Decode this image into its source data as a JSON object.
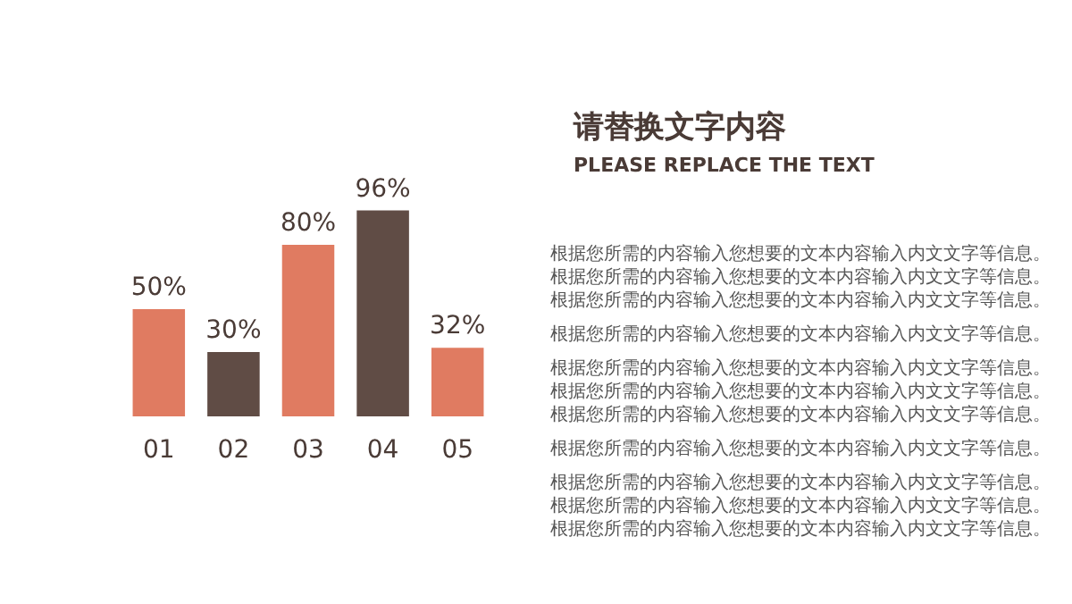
{
  "chart_data": {
    "type": "bar",
    "title": "请替换文字内容",
    "subtitle": "PLEASE REPLACE THE TEXT",
    "categories": [
      "01",
      "02",
      "03",
      "04",
      "05"
    ],
    "values": [
      50,
      30,
      80,
      96,
      32
    ],
    "colors": [
      "#e07b61",
      "#604c45",
      "#e07b61",
      "#604c45",
      "#e07b61"
    ],
    "value_labels": [
      "50%",
      "30%",
      "80%",
      "96%",
      "32%"
    ],
    "tick_labels": "x",
    "grid": false,
    "annotations": [
      "根据您所需的内容输入您想要的文本内容输入内文文字等信息。根据您所需的内容输入您想要的文本内容输入内文文字等信息。根据您所需的内容输入您想要的文本内容输入内文文字等信息。",
      "根据您所需的内容输入您想要的文本内容输入内文文字等信息。",
      "根据您所需的内容输入您想要的文本内容输入内文文字等信息。根据您所需的内容输入您想要的文本内容输入内文文字等信息。根据您所需的内容输入您想要的文本内容输入内文文字等信息。",
      "根据您所需的内容输入您想要的文本内容输入内文文字等信息。",
      "根据您所需的内容输入您想要的文本内容输入内文文字等信息。根据您所需的内容输入您想要的文本内容输入内文文字等信息。根据您所需的内容输入您想要的文本内容输入内文文字等信息。"
    ]
  }
}
